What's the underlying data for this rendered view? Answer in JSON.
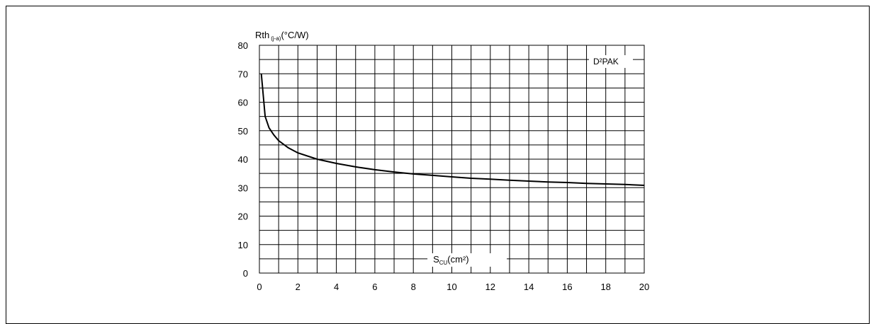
{
  "chart_data": {
    "type": "line",
    "ylabel": {
      "main": "Rth",
      "sub": "(j-a)",
      "unit": "(°C/W)"
    },
    "xlabel": {
      "main": "S",
      "sub": "CU",
      "unit": "(cm²)"
    },
    "xlim": [
      0,
      20
    ],
    "ylim": [
      0,
      80
    ],
    "x_ticks": [
      "0",
      "2",
      "4",
      "6",
      "8",
      "10",
      "12",
      "14",
      "16",
      "18",
      "20"
    ],
    "y_ticks": [
      "0",
      "10",
      "20",
      "30",
      "40",
      "50",
      "60",
      "70",
      "80"
    ],
    "grid": true,
    "series": [
      {
        "name": "D²PAK",
        "color": "#000000",
        "x": [
          0.1,
          0.3,
          0.5,
          0.75,
          1,
          1.5,
          2,
          3,
          4,
          5,
          6,
          7,
          8,
          9,
          10,
          11,
          12,
          13,
          14,
          15,
          16,
          17,
          18,
          19,
          20
        ],
        "y": [
          70,
          55,
          51,
          48.5,
          46.5,
          44,
          42.2,
          40,
          38.5,
          37.3,
          36.3,
          35.5,
          34.8,
          34.3,
          33.8,
          33.3,
          33,
          32.6,
          32.3,
          32,
          31.8,
          31.5,
          31.3,
          31.1,
          30.8
        ]
      }
    ]
  }
}
